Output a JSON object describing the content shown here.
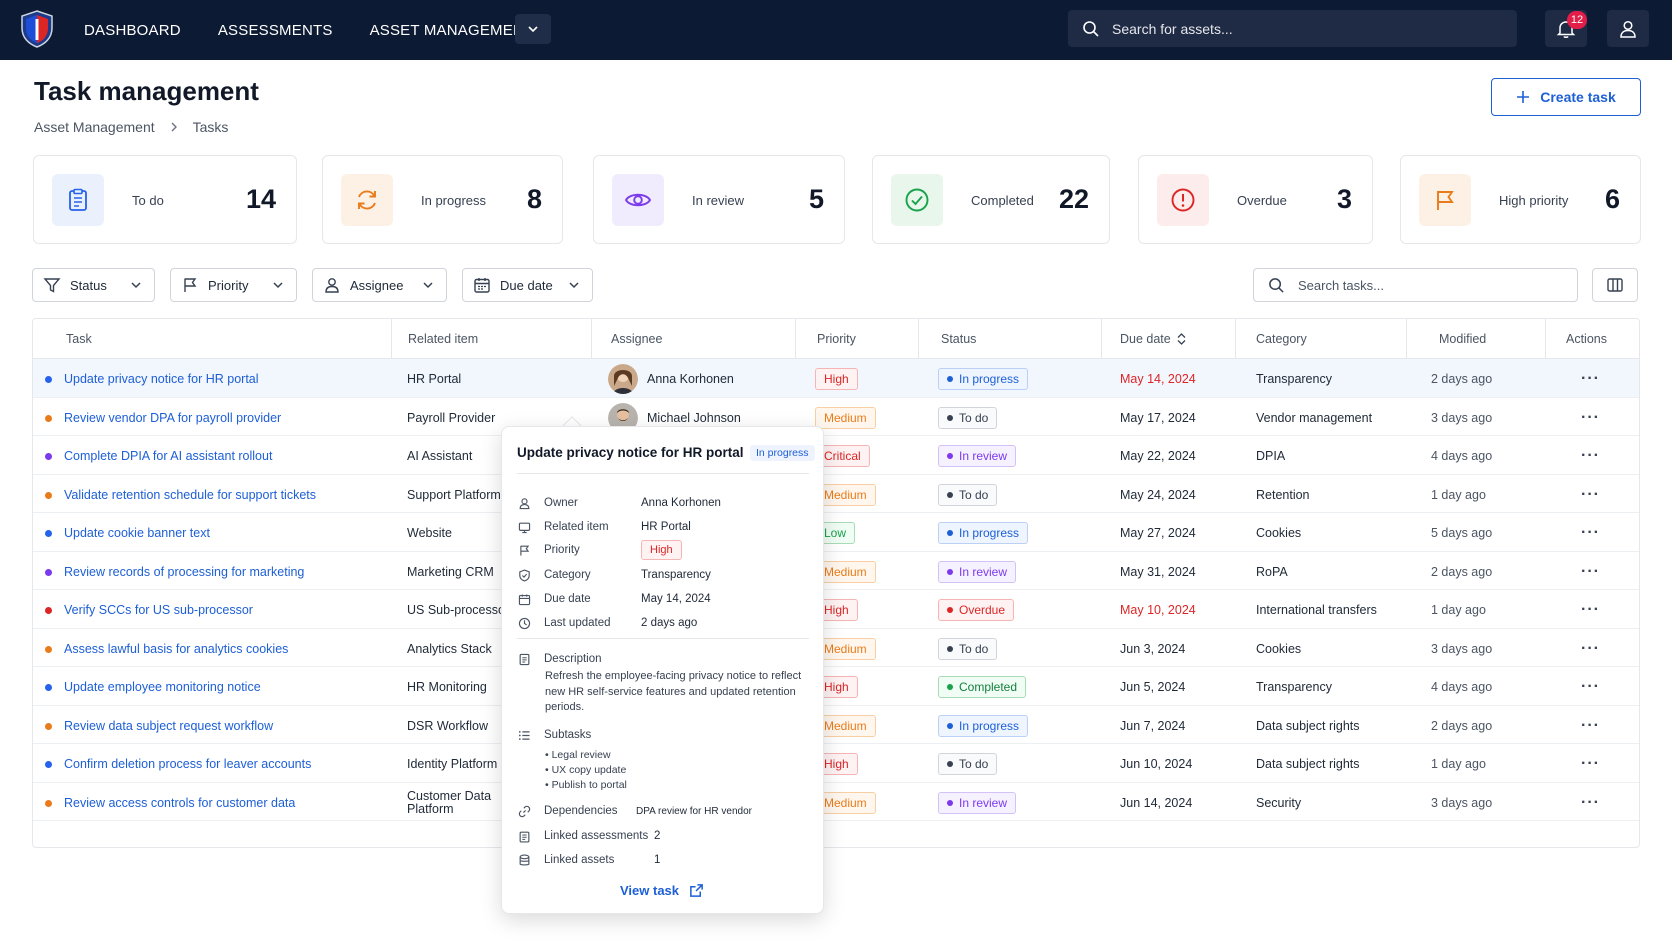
{
  "nav": {
    "links": [
      "DASHBOARD",
      "ASSESSMENTS",
      "ASSET MANAGEMENT"
    ],
    "search_placeholder": "Search for assets...",
    "notification_count": "12"
  },
  "header": {
    "title": "Task management",
    "breadcrumb": [
      "Asset Management",
      "Tasks"
    ],
    "create_label": "Create task"
  },
  "stats": [
    {
      "label": "To do",
      "value": "14",
      "icon": "clipboard-icon",
      "color": "#2563eb",
      "bg": "#eaf1fd"
    },
    {
      "label": "In progress",
      "value": "8",
      "icon": "refresh-icon",
      "color": "#ea7b1a",
      "bg": "#fdf0e4"
    },
    {
      "label": "In review",
      "value": "5",
      "icon": "eye-icon",
      "color": "#7c3aed",
      "bg": "#f1ecfd"
    },
    {
      "label": "Completed",
      "value": "22",
      "icon": "check-circle-icon",
      "color": "#16a34a",
      "bg": "#e8f6ec"
    },
    {
      "label": "Overdue",
      "value": "3",
      "icon": "alert-circle-icon",
      "color": "#dc2626",
      "bg": "#fdecec"
    },
    {
      "label": "High priority",
      "value": "6",
      "icon": "flag-icon",
      "color": "#ea7b1a",
      "bg": "#fdf0e4"
    }
  ],
  "filters": [
    "Status",
    "Priority",
    "Assignee",
    "Due date"
  ],
  "task_search_placeholder": "Search tasks...",
  "table": {
    "columns": [
      "Task",
      "Related item",
      "Assignee",
      "Priority",
      "Status",
      "Due date",
      "Category",
      "Modified",
      "Actions"
    ],
    "rows": [
      {
        "dot": "#2563eb",
        "task": "Update privacy notice for HR portal",
        "related": "HR Portal",
        "assignee": "Anna Korhonen",
        "priority": "High",
        "status": "In progress",
        "due": "May 14, 2024",
        "due_overdue": true,
        "category": "Transparency",
        "modified": "2 days ago"
      },
      {
        "dot": "#ea7b1a",
        "task": "Review vendor DPA for payroll provider",
        "related": "Payroll Provider",
        "assignee": "Michael Johnson",
        "priority": "Medium",
        "status": "To do",
        "due": "May 17, 2024",
        "due_overdue": false,
        "category": "Vendor management",
        "modified": "3 days ago"
      },
      {
        "dot": "#7c3aed",
        "task": "Complete DPIA for AI assistant rollout",
        "related": "AI Assistant",
        "assignee": "",
        "priority": "Critical",
        "status": "In review",
        "due": "May 22, 2024",
        "due_overdue": false,
        "category": "DPIA",
        "modified": "4 days ago"
      },
      {
        "dot": "#ea7b1a",
        "task": "Validate retention schedule for support tickets",
        "related": "Support Platform",
        "assignee": "",
        "priority": "Medium",
        "status": "To do",
        "due": "May 24, 2024",
        "due_overdue": false,
        "category": "Retention",
        "modified": "1 day ago"
      },
      {
        "dot": "#2563eb",
        "task": "Update cookie banner text",
        "related": "Website",
        "assignee": "",
        "priority": "Low",
        "status": "In progress",
        "due": "May 27, 2024",
        "due_overdue": false,
        "category": "Cookies",
        "modified": "5 days ago"
      },
      {
        "dot": "#7c3aed",
        "task": "Review records of processing for marketing",
        "related": "Marketing CRM",
        "assignee": "",
        "priority": "Medium",
        "status": "In review",
        "due": "May 31, 2024",
        "due_overdue": false,
        "category": "RoPA",
        "modified": "2 days ago"
      },
      {
        "dot": "#dc2626",
        "task": "Verify SCCs for US sub-processor",
        "related": "US Sub-processor",
        "assignee": "",
        "priority": "High",
        "status": "Overdue",
        "due": "May 10, 2024",
        "due_overdue": true,
        "category": "International transfers",
        "modified": "1 day ago"
      },
      {
        "dot": "#ea7b1a",
        "task": "Assess lawful basis for analytics cookies",
        "related": "Analytics Stack",
        "assignee": "",
        "priority": "Medium",
        "status": "To do",
        "due": "Jun 3, 2024",
        "due_overdue": false,
        "category": "Cookies",
        "modified": "3 days ago"
      },
      {
        "dot": "#2563eb",
        "task": "Update employee monitoring notice",
        "related": "HR Monitoring",
        "assignee": "",
        "priority": "High",
        "status": "Completed",
        "due": "Jun 5, 2024",
        "due_overdue": false,
        "category": "Transparency",
        "modified": "4 days ago"
      },
      {
        "dot": "#ea7b1a",
        "task": "Review data subject request workflow",
        "related": "DSR Workflow",
        "assignee": "",
        "priority": "Medium",
        "status": "In progress",
        "due": "Jun 7, 2024",
        "due_overdue": false,
        "category": "Data subject rights",
        "modified": "2 days ago"
      },
      {
        "dot": "#2563eb",
        "task": "Confirm deletion process for leaver accounts",
        "related": "Identity Platform",
        "assignee": "",
        "priority": "High",
        "status": "To do",
        "due": "Jun 10, 2024",
        "due_overdue": false,
        "category": "Data subject rights",
        "modified": "1 day ago"
      },
      {
        "dot": "#ea7b1a",
        "task": "Review access controls for customer data",
        "related": "Customer Data Platform",
        "assignee": "",
        "priority": "Medium",
        "status": "In review",
        "due": "Jun 14, 2024",
        "due_overdue": false,
        "category": "Security",
        "modified": "3 days ago"
      }
    ]
  },
  "popover": {
    "title": "Update privacy notice for HR portal",
    "status": "In progress",
    "owner_label": "Owner",
    "owner": "Anna Korhonen",
    "related_label": "Related item",
    "related": "HR Portal",
    "priority_label": "Priority",
    "priority": "High",
    "category_label": "Category",
    "category": "Transparency",
    "due_label": "Due date",
    "due": "May 14, 2024",
    "updated_label": "Last updated",
    "updated": "2 days ago",
    "description_label": "Description",
    "description": "Refresh the employee-facing privacy notice to reflect new HR self-service features and updated retention periods.",
    "subtasks_label": "Subtasks",
    "subtasks": [
      "Legal review",
      "UX copy update",
      "Publish to portal"
    ],
    "dependencies_label": "Dependencies",
    "dependencies": "DPA review for HR vendor",
    "linked_assessments_label": "Linked assessments",
    "linked_assessments": "2",
    "linked_assets_label": "Linked assets",
    "linked_assets": "1",
    "view_label": "View task"
  }
}
